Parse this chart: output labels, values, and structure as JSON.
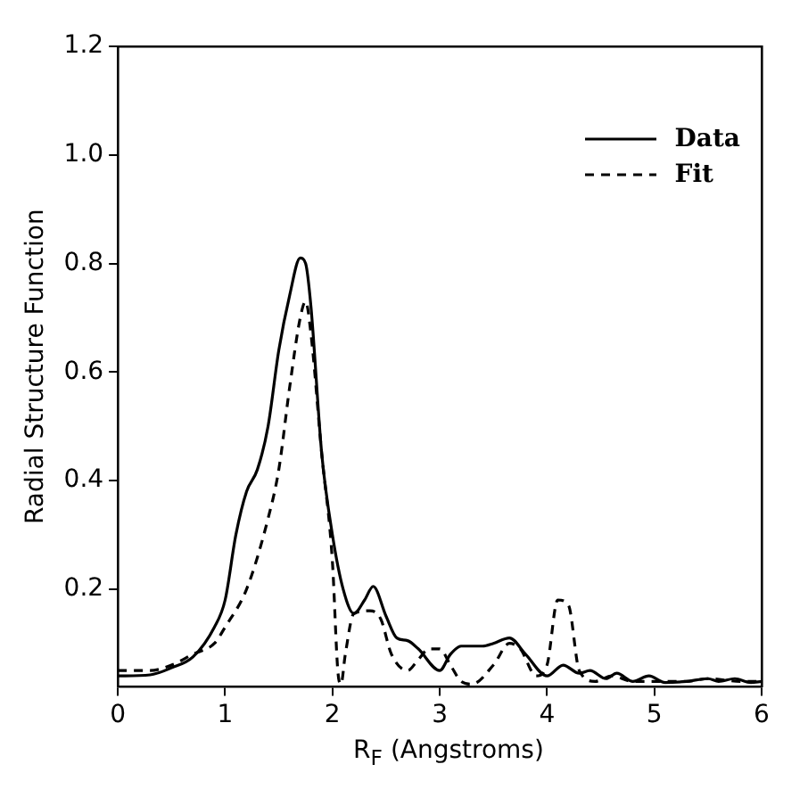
{
  "chart_data": {
    "type": "line",
    "xlabel": "R$_{F}$ (Angstroms)",
    "ylabel": "Radial Structure Function",
    "xlim": [
      0,
      6
    ],
    "xticks": [
      0,
      1,
      2,
      3,
      4,
      5,
      6
    ],
    "ylim": [
      0.02,
      1.2
    ],
    "yticks": [
      0.2,
      0.4,
      0.6,
      0.8,
      {
        "value": 1.0,
        "label": "1.0"
      },
      1.2
    ],
    "grid": false,
    "legend": "top right",
    "marker": "none",
    "series": [
      {
        "name": "Data",
        "color": "#000000",
        "line_style": "solid",
        "x": [
          0,
          0.3,
          0.5,
          0.7,
          0.9,
          1.0,
          1.1,
          1.2,
          1.3,
          1.4,
          1.5,
          1.6,
          1.7,
          1.75,
          1.8,
          1.9,
          2.0,
          2.1,
          2.2,
          2.3,
          2.38,
          2.5,
          2.6,
          2.7,
          2.8,
          3.0,
          3.1,
          3.2,
          3.4,
          3.5,
          3.65,
          3.8,
          4.0,
          4.15,
          4.3,
          4.4,
          4.55,
          4.65,
          4.8,
          4.95,
          5.1,
          5.3,
          5.5,
          5.6,
          5.75,
          5.9,
          6
        ],
        "values": [
          0.04,
          0.042,
          0.055,
          0.075,
          0.13,
          0.18,
          0.3,
          0.38,
          0.42,
          0.5,
          0.64,
          0.74,
          0.81,
          0.8,
          0.72,
          0.45,
          0.3,
          0.2,
          0.155,
          0.18,
          0.205,
          0.15,
          0.11,
          0.105,
          0.09,
          0.05,
          0.08,
          0.095,
          0.095,
          0.1,
          0.11,
          0.08,
          0.04,
          0.06,
          0.045,
          0.05,
          0.035,
          0.045,
          0.03,
          0.04,
          0.028,
          0.03,
          0.035,
          0.03,
          0.035,
          0.028,
          0.03
        ]
      },
      {
        "name": "Fit",
        "color": "#000000",
        "line_style": "dashed",
        "x": [
          0,
          0.3,
          0.5,
          0.7,
          0.9,
          1.0,
          1.2,
          1.4,
          1.5,
          1.6,
          1.7,
          1.75,
          1.8,
          1.9,
          2.0,
          2.05,
          2.08,
          2.12,
          2.2,
          2.35,
          2.45,
          2.55,
          2.7,
          2.8,
          2.9,
          3.0,
          3.1,
          3.2,
          3.3,
          3.5,
          3.65,
          3.75,
          3.9,
          4.0,
          4.1,
          4.2,
          4.3,
          4.45,
          4.6,
          4.8,
          5.0,
          5.3,
          5.5,
          5.8,
          6
        ],
        "values": [
          0.05,
          0.05,
          0.06,
          0.08,
          0.1,
          0.13,
          0.2,
          0.33,
          0.42,
          0.57,
          0.7,
          0.73,
          0.67,
          0.45,
          0.25,
          0.05,
          0.025,
          0.08,
          0.155,
          0.16,
          0.145,
          0.08,
          0.05,
          0.07,
          0.09,
          0.09,
          0.06,
          0.03,
          0.025,
          0.06,
          0.1,
          0.09,
          0.04,
          0.06,
          0.18,
          0.17,
          0.05,
          0.03,
          0.04,
          0.03,
          0.03,
          0.03,
          0.035,
          0.03,
          0.03
        ]
      }
    ]
  }
}
